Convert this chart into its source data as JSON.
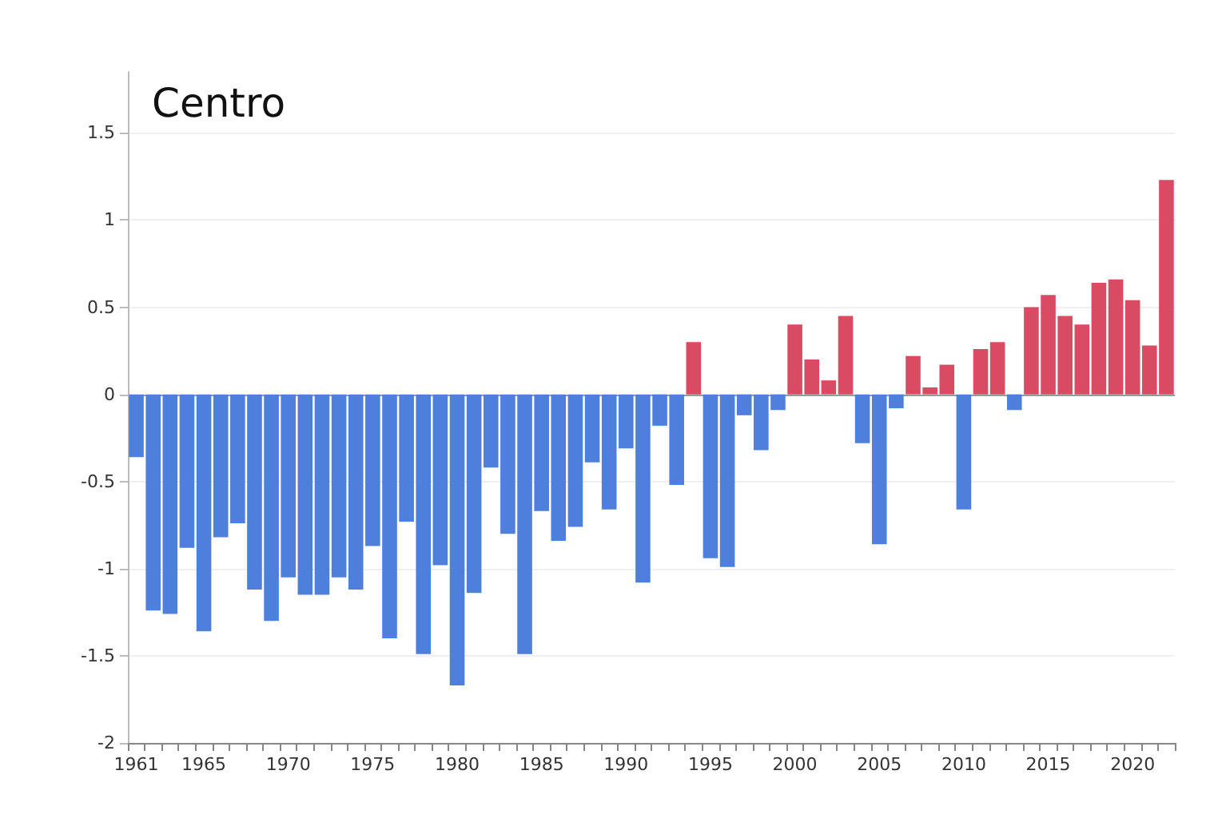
{
  "chart_data": {
    "type": "bar",
    "title": "Centro",
    "categories": [
      "1961",
      null,
      null,
      null,
      "1965",
      null,
      null,
      null,
      null,
      "1970",
      null,
      null,
      null,
      null,
      "1975",
      null,
      null,
      null,
      null,
      "1980",
      null,
      null,
      null,
      null,
      "1985",
      null,
      null,
      null,
      null,
      "1990",
      null,
      null,
      null,
      null,
      "1995",
      null,
      null,
      null,
      null,
      "2000",
      null,
      null,
      null,
      null,
      "2005",
      null,
      null,
      null,
      null,
      "2010",
      null,
      null,
      null,
      null,
      "2015",
      null,
      null,
      null,
      null,
      "2020",
      null,
      null
    ],
    "values": [
      -0.36,
      -1.24,
      -1.26,
      -0.88,
      -1.36,
      -0.82,
      -0.74,
      -1.12,
      -1.3,
      -1.05,
      -1.15,
      -1.15,
      -1.05,
      -1.12,
      -0.87,
      -1.4,
      -0.73,
      -1.49,
      -0.98,
      -1.67,
      -1.14,
      -0.42,
      -0.8,
      -1.49,
      -0.67,
      -0.84,
      -0.76,
      -0.39,
      -0.66,
      -0.31,
      -1.08,
      -0.18,
      -0.52,
      0.3,
      -0.94,
      -0.99,
      -0.12,
      -0.32,
      -0.09,
      0.4,
      0.2,
      0.08,
      0.45,
      -0.28,
      -0.86,
      -0.08,
      0.22,
      0.04,
      0.17,
      -0.66,
      0.26,
      0.3,
      -0.09,
      0.5,
      0.57,
      0.45,
      0.4,
      0.64,
      0.66,
      0.54,
      0.28,
      1.23
    ],
    "colors": [
      "#4f7fdc",
      "#4f7fdc",
      "#4f7fdc",
      "#4f7fdc",
      "#4f7fdc",
      "#4f7fdc",
      "#4f7fdc",
      "#4f7fdc",
      "#4f7fdc",
      "#4f7fdc",
      "#4f7fdc",
      "#4f7fdc",
      "#4f7fdc",
      "#4f7fdc",
      "#4f7fdc",
      "#4f7fdc",
      "#4f7fdc",
      "#4f7fdc",
      "#4f7fdc",
      "#4f7fdc",
      "#4f7fdc",
      "#4f7fdc",
      "#4f7fdc",
      "#4f7fdc",
      "#4f7fdc",
      "#4f7fdc",
      "#4f7fdc",
      "#4f7fdc",
      "#4f7fdc",
      "#4f7fdc",
      "#4f7fdc",
      "#4f7fdc",
      "#4f7fdc",
      "#d94b63",
      "#4f7fdc",
      "#4f7fdc",
      "#4f7fdc",
      "#4f7fdc",
      "#4f7fdc",
      "#d94b63",
      "#d94b63",
      "#d94b63",
      "#d94b63",
      "#4f7fdc",
      "#4f7fdc",
      "#4f7fdc",
      "#d94b63",
      "#d94b63",
      "#d94b63",
      "#4f7fdc",
      "#d94b63",
      "#d94b63",
      "#4f7fdc",
      "#d94b63",
      "#d94b63",
      "#d94b63",
      "#d94b63",
      "#d94b63",
      "#d94b63",
      "#d94b63",
      "#d94b63",
      "#d94b63"
    ],
    "ylim": [
      -2,
      1.85
    ],
    "yticks": [
      -2,
      -1.5,
      -1,
      -0.5,
      0,
      0.5,
      1,
      1.5
    ],
    "grid": "y"
  }
}
